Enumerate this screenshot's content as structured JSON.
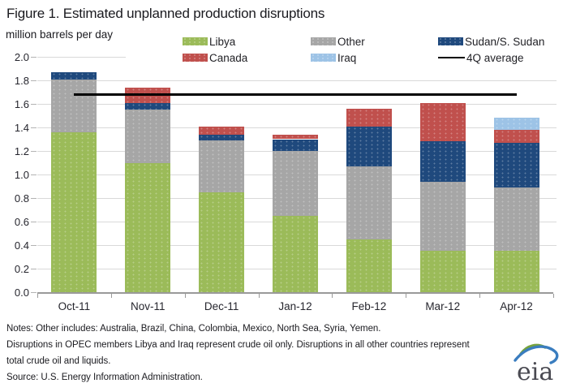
{
  "title": "Figure 1. Estimated unplanned production disruptions",
  "units_label": "million barrels per day",
  "legend": [
    {
      "label": "Libya",
      "color": "#9BBB59",
      "type": "patch",
      "col": 0,
      "row": 0
    },
    {
      "label": "Other",
      "color": "#A6A6A6",
      "type": "patch",
      "col": 1,
      "row": 0
    },
    {
      "label": "Sudan/S. Sudan",
      "color": "#1F497D",
      "type": "patch",
      "col": 2,
      "row": 0
    },
    {
      "label": "Canada",
      "color": "#C0504D",
      "type": "patch",
      "col": 0,
      "row": 1
    },
    {
      "label": "Iraq",
      "color": "#9DC3E6",
      "type": "patch",
      "col": 1,
      "row": 1
    },
    {
      "label": "4Q average",
      "color": "#000000",
      "type": "line",
      "col": 2,
      "row": 1
    }
  ],
  "chart_data": {
    "type": "bar",
    "stacked": true,
    "title": "Figure 1. Estimated unplanned production disruptions",
    "ylabel": "million barrels per day",
    "categories": [
      "Oct-11",
      "Nov-11",
      "Dec-11",
      "Jan-12",
      "Feb-12",
      "Mar-12",
      "Apr-12"
    ],
    "series": [
      {
        "name": "Libya",
        "color": "#9BBB59",
        "values": [
          1.36,
          1.1,
          0.85,
          0.65,
          0.45,
          0.35,
          0.35
        ]
      },
      {
        "name": "Other",
        "color": "#A6A6A6",
        "values": [
          0.45,
          0.45,
          0.44,
          0.55,
          0.62,
          0.59,
          0.54
        ]
      },
      {
        "name": "Sudan/S. Sudan",
        "color": "#1F497D",
        "values": [
          0.06,
          0.06,
          0.05,
          0.1,
          0.34,
          0.34,
          0.38
        ]
      },
      {
        "name": "Canada",
        "color": "#C0504D",
        "values": [
          0.0,
          0.13,
          0.07,
          0.04,
          0.15,
          0.33,
          0.11
        ]
      },
      {
        "name": "Iraq",
        "color": "#9DC3E6",
        "values": [
          0.0,
          0.0,
          0.0,
          0.0,
          0.0,
          0.0,
          0.1
        ]
      }
    ],
    "overlay_line": {
      "name": "4Q average",
      "value": 1.68,
      "color": "#000000"
    },
    "ylim": [
      0.0,
      2.0
    ],
    "ytick_step": 0.2,
    "ytick_labels": [
      "0.0",
      "0.2",
      "0.4",
      "0.6",
      "0.8",
      "1.0",
      "1.2",
      "1.4",
      "1.6",
      "1.8",
      "2.0"
    ],
    "grid": true,
    "legend_position": "top"
  },
  "notes": [
    "Notes: Other includes: Australia, Brazil, China, Colombia, Mexico, North Sea, Syria, Yemen.",
    "Disruptions in OPEC members Libya and Iraq represent crude oil only. Disruptions in all other countries represent",
    "total crude oil and liquids."
  ],
  "source": "Source: U.S. Energy Information Administration.",
  "logo_text": "eia"
}
